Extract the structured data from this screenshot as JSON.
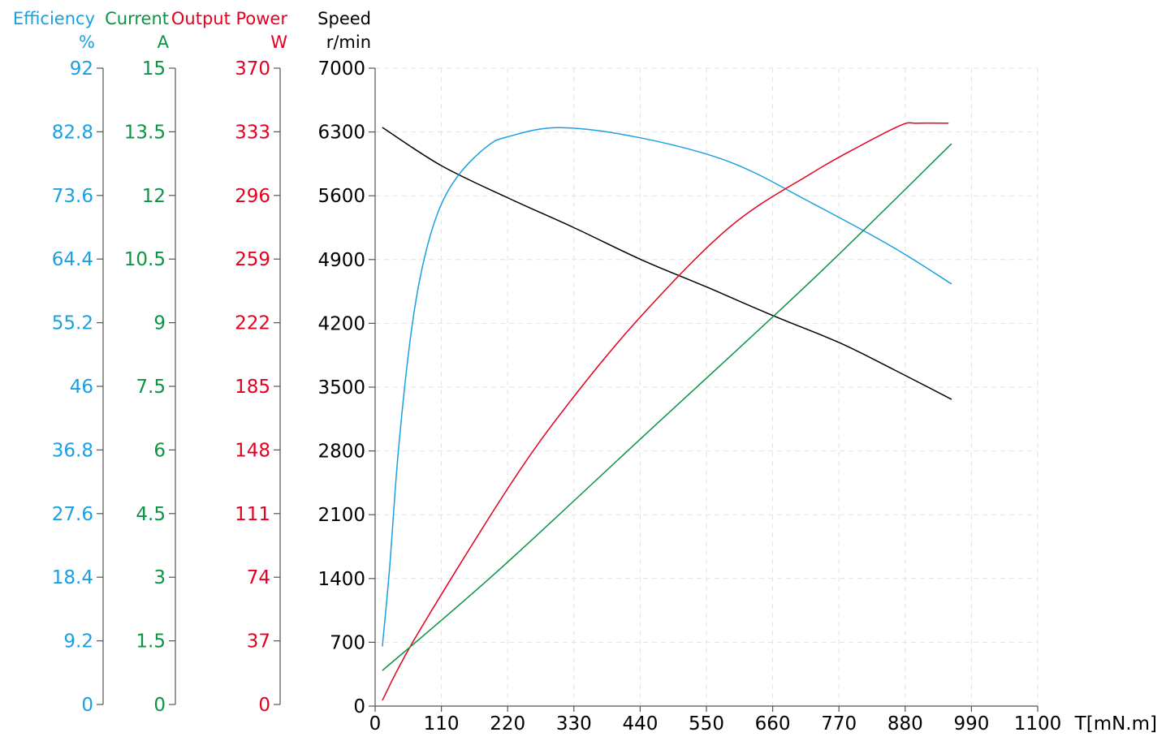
{
  "chart_data": {
    "type": "line",
    "xlabel": "T[mN.m]",
    "xlim": [
      0,
      1100
    ],
    "xticks": [
      0,
      110,
      220,
      330,
      440,
      550,
      660,
      770,
      880,
      990,
      1100
    ],
    "grid": true,
    "axes": [
      {
        "key": "efficiency",
        "title": "Efficiency",
        "unit": "%",
        "color": "#1a9fe0",
        "ylim": [
          0,
          92
        ],
        "ticks": [
          "0",
          "9.2",
          "18.4",
          "27.6",
          "36.8",
          "46",
          "55.2",
          "64.4",
          "73.6",
          "82.8",
          "92"
        ]
      },
      {
        "key": "current",
        "title": "Current",
        "unit": "A",
        "color": "#0b9444",
        "ylim": [
          0,
          15
        ],
        "ticks": [
          "0",
          "1.5",
          "3",
          "4.5",
          "6",
          "7.5",
          "9",
          "10.5",
          "12",
          "13.5",
          "15"
        ]
      },
      {
        "key": "power",
        "title": "Output Power",
        "unit": "W",
        "color": "#e60020",
        "ylim": [
          0,
          370
        ],
        "ticks": [
          "0",
          "37",
          "74",
          "111",
          "148",
          "185",
          "222",
          "259",
          "296",
          "333",
          "370"
        ]
      },
      {
        "key": "speed",
        "title": "Speed",
        "unit": "r/min",
        "color": "#000000",
        "ylim": [
          0,
          7000
        ],
        "ticks": [
          "0",
          "700",
          "1400",
          "2100",
          "2800",
          "3500",
          "4200",
          "4900",
          "5600",
          "6300",
          "7000"
        ]
      }
    ],
    "series": [
      {
        "axis": "speed",
        "color": "#000000",
        "x": [
          12,
          110,
          221,
          330,
          442,
          550,
          664,
          770,
          860,
          957
        ],
        "y": [
          6350,
          5930,
          5575,
          5250,
          4898,
          4600,
          4275,
          3990,
          3696,
          3366
        ]
      },
      {
        "axis": "efficiency",
        "color": "#1a9fe0",
        "x": [
          12,
          24,
          38,
          58,
          78,
          105,
          139,
          186,
          221,
          307,
          442,
          590,
          725,
          860,
          957
        ],
        "y": [
          8.4,
          19.7,
          36.1,
          52.6,
          63.1,
          71.3,
          76.6,
          80.7,
          82.1,
          83.4,
          81.9,
          78.4,
          72.5,
          66.1,
          60.8
        ]
      },
      {
        "axis": "power",
        "color": "#e60020",
        "x": [
          12,
          67,
          221,
          321,
          442,
          590,
          725,
          806,
          874,
          900,
          952
        ],
        "y": [
          2.4,
          39,
          126,
          175,
          226,
          278,
          309,
          325,
          337,
          338,
          338
        ]
      },
      {
        "axis": "current",
        "color": "#0b9444",
        "x": [
          12,
          200,
          442,
          725,
          957
        ],
        "y": [
          0.8,
          3.1,
          6.28,
          10.0,
          13.22
        ]
      }
    ]
  }
}
